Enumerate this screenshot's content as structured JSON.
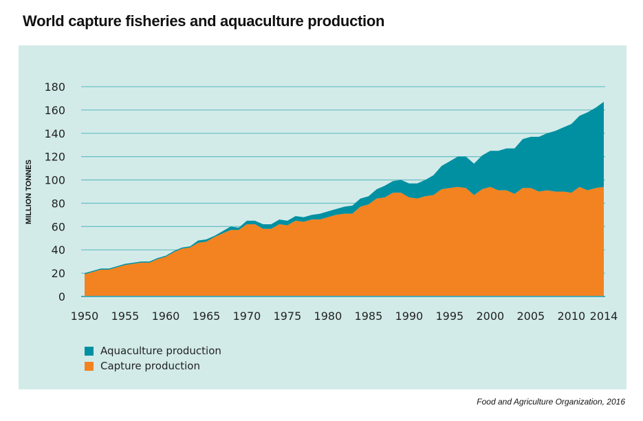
{
  "title": "World capture fisheries and aquaculture production",
  "source": "Food and Agriculture Organization, 2016",
  "colors": {
    "aquaculture": "#0090a1",
    "capture": "#f38220",
    "background": "#d2ebe9",
    "grid": "#6fc0c6"
  },
  "chart_data": {
    "type": "area",
    "stacked": true,
    "title": "World capture fisheries and aquaculture production",
    "ylabel": "MILLION TONNES",
    "xlabel": "",
    "ylim": [
      0,
      180
    ],
    "xlim": [
      1950,
      2014
    ],
    "grid": true,
    "legend_position": "bottom-left",
    "yticks": [
      "0",
      "20",
      "40",
      "60",
      "80",
      "100",
      "120",
      "140",
      "160",
      "180"
    ],
    "xticks": [
      "1950",
      "1955",
      "1960",
      "1965",
      "1970",
      "1975",
      "1980",
      "1985",
      "1990",
      "1995",
      "2000",
      "2005",
      "2010",
      "2014"
    ],
    "x": [
      1950,
      1951,
      1952,
      1953,
      1954,
      1955,
      1956,
      1957,
      1958,
      1959,
      1960,
      1961,
      1962,
      1963,
      1964,
      1965,
      1966,
      1967,
      1968,
      1969,
      1970,
      1971,
      1972,
      1973,
      1974,
      1975,
      1976,
      1977,
      1978,
      1979,
      1980,
      1981,
      1982,
      1983,
      1984,
      1985,
      1986,
      1987,
      1988,
      1989,
      1990,
      1991,
      1992,
      1993,
      1994,
      1995,
      1996,
      1997,
      1998,
      1999,
      2000,
      2001,
      2002,
      2003,
      2004,
      2005,
      2006,
      2007,
      2008,
      2009,
      2010,
      2011,
      2012,
      2013,
      2014
    ],
    "series": [
      {
        "name": "Capture production",
        "color": "#f38220",
        "values": [
          19,
          21,
          23,
          23,
          25,
          27,
          28,
          29,
          29,
          32,
          34,
          38,
          41,
          42,
          46,
          47,
          51,
          54,
          57,
          57,
          62,
          62,
          58,
          58,
          62,
          61,
          65,
          64,
          66,
          66,
          68,
          70,
          71,
          71,
          77,
          79,
          84,
          85,
          89,
          89,
          85,
          84,
          86,
          87,
          92,
          93,
          94,
          93,
          87,
          92,
          94,
          91,
          91,
          88,
          93,
          93,
          90,
          91,
          90,
          90,
          89,
          94,
          91,
          93,
          94
        ]
      },
      {
        "name": "Aquaculture production",
        "color": "#0090a1",
        "values": [
          1,
          1,
          1,
          1,
          1,
          1,
          1,
          1,
          1,
          1,
          1,
          1,
          1,
          1,
          2,
          2,
          1,
          2,
          3,
          2,
          3,
          3,
          4,
          4,
          4,
          4,
          4,
          4,
          4,
          5,
          5,
          5,
          6,
          7,
          7,
          7,
          8,
          10,
          10,
          11,
          12,
          13,
          14,
          17,
          20,
          23,
          26,
          27,
          27,
          29,
          31,
          34,
          36,
          39,
          42,
          44,
          47,
          49,
          52,
          55,
          59,
          61,
          67,
          69,
          73
        ]
      }
    ],
    "legend": [
      "Aquaculture production",
      "Capture production"
    ]
  }
}
